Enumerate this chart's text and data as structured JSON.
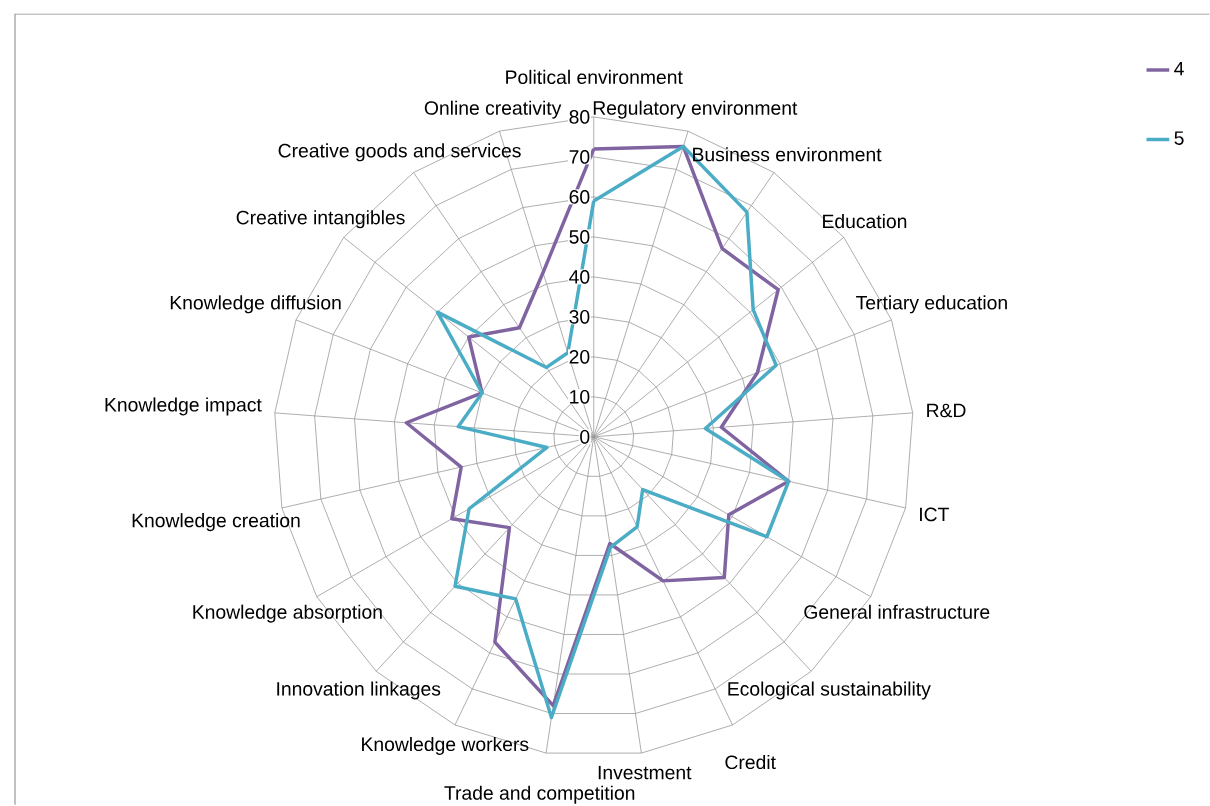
{
  "chart_data": {
    "type": "radar",
    "categories": [
      "Political environment",
      "Regulatory environment",
      "Business environment",
      "Education",
      "Tertiary education",
      "R&D",
      "ICT",
      "General infrastructure",
      "Ecological sustainability",
      "Credit",
      "Investment",
      "Trade and competition",
      "Knowledge workers",
      "Innovation linkages",
      "Knowledge absorption",
      "Knowledge creation",
      "Knowledge impact",
      "Knowledge diffusion",
      "Creative intangibles",
      "Creative goods and services",
      "Online creativity"
    ],
    "series": [
      {
        "name": "4",
        "color": "#8064a2",
        "values": [
          72,
          76,
          57,
          59,
          44,
          32,
          50,
          39,
          48,
          40,
          27,
          68,
          57,
          31,
          41,
          34,
          47,
          30,
          40,
          33,
          43
        ]
      },
      {
        "name": "5",
        "color": "#4bacc6",
        "values": [
          59,
          76,
          68,
          51,
          49,
          28,
          50,
          50,
          18,
          25,
          28,
          71,
          45,
          51,
          36,
          12,
          34,
          30,
          50,
          21,
          22
        ]
      }
    ],
    "ylim": [
      0,
      80
    ],
    "yticks": [
      0,
      10,
      20,
      30,
      40,
      50,
      60,
      70,
      80
    ],
    "grid": true,
    "legend": "top right",
    "marker": "none",
    "line_style": "solid"
  }
}
